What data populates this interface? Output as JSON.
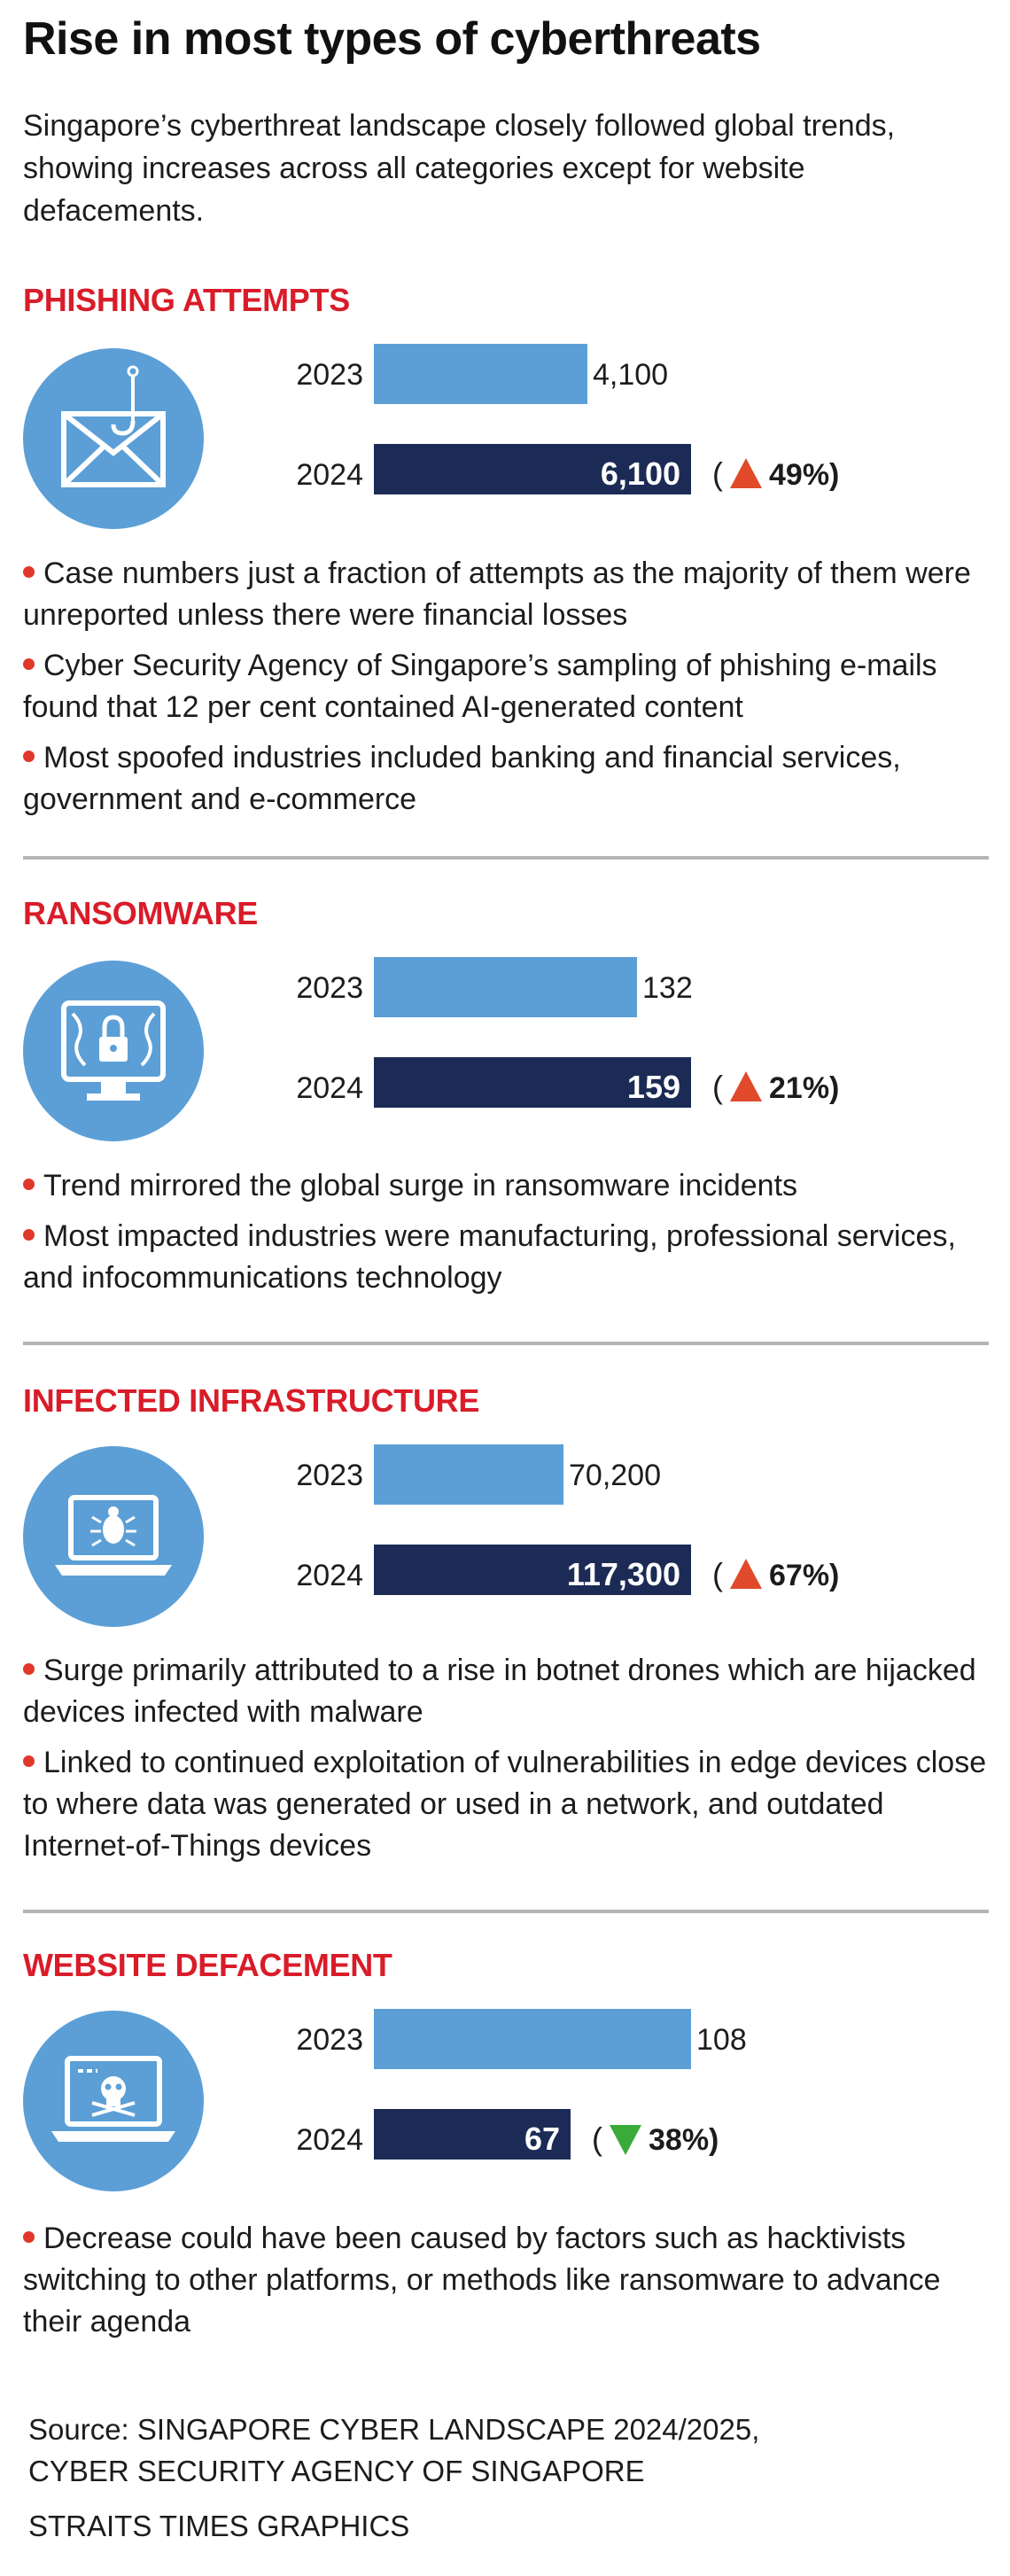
{
  "title": "Rise in most types of cyberthreats",
  "intro": "Singapore’s cyberthreat landscape closely followed global trends, showing increases across all categories except for website defacements.",
  "colors": {
    "bar_2023": "#5c9fd6",
    "bar_2024": "#1c2b55",
    "heading": "#d91c29",
    "up": "#e04a2a",
    "down": "#3aab3a",
    "bullet": "#e0372a"
  },
  "sections": [
    {
      "title": "PHISHING ATTEMPTS",
      "icon": "phishing-envelope-icon",
      "bullets": [
        "Case numbers just a fraction of attempts as the majority of them were unreported unless there were financial losses",
        "Cyber Security Agency of Singapore’s sampling of phishing e-mails found that 12 per cent contained AI-generated content",
        "Most spoofed industries included banking and financial services, government and e-commerce"
      ]
    },
    {
      "title": "RANSOMWARE",
      "icon": "locked-monitor-icon",
      "bullets": [
        "Trend mirrored the global surge in ransomware incidents",
        "Most impacted industries were manufacturing, professional services, and infocommunications technology"
      ]
    },
    {
      "title": "INFECTED INFRASTRUCTURE",
      "icon": "bug-laptop-icon",
      "bullets": [
        "Surge primarily attributed to a rise in botnet drones which are hijacked devices infected with malware",
        "Linked to continued exploitation of vulnerabilities in edge devices close to where data was generated or used in a network, and outdated Internet-of-Things devices"
      ]
    },
    {
      "title": "WEBSITE DEFACEMENT",
      "icon": "skull-laptop-icon",
      "bullets": [
        "Decrease could have been caused by factors such as hacktivists switching to other platforms, or methods like ransomware to advance their agenda"
      ]
    }
  ],
  "chart_data": [
    {
      "type": "bar",
      "orientation": "horizontal",
      "title": "PHISHING ATTEMPTS",
      "categories": [
        "2023",
        "2024"
      ],
      "values": [
        4100,
        6100
      ],
      "value_labels": [
        "4,100",
        "6,100"
      ],
      "change": {
        "direction": "up",
        "label": "49%"
      }
    },
    {
      "type": "bar",
      "orientation": "horizontal",
      "title": "RANSOMWARE",
      "categories": [
        "2023",
        "2024"
      ],
      "values": [
        132,
        159
      ],
      "value_labels": [
        "132",
        "159"
      ],
      "change": {
        "direction": "up",
        "label": "21%"
      }
    },
    {
      "type": "bar",
      "orientation": "horizontal",
      "title": "INFECTED INFRASTRUCTURE",
      "categories": [
        "2023",
        "2024"
      ],
      "values": [
        70200,
        117300
      ],
      "value_labels": [
        "70,200",
        "117,300"
      ],
      "change": {
        "direction": "up",
        "label": "67%"
      }
    },
    {
      "type": "bar",
      "orientation": "horizontal",
      "title": "WEBSITE DEFACEMENT",
      "categories": [
        "2023",
        "2024"
      ],
      "values": [
        108,
        67
      ],
      "value_labels": [
        "108",
        "67"
      ],
      "change": {
        "direction": "down",
        "label": "38%"
      }
    }
  ],
  "source": {
    "line1": "Source: SINGAPORE CYBER LANDSCAPE 2024/2025,",
    "line2": "CYBER SECURITY AGENCY OF SINGAPORE"
  },
  "credit": "STRAITS TIMES GRAPHICS"
}
